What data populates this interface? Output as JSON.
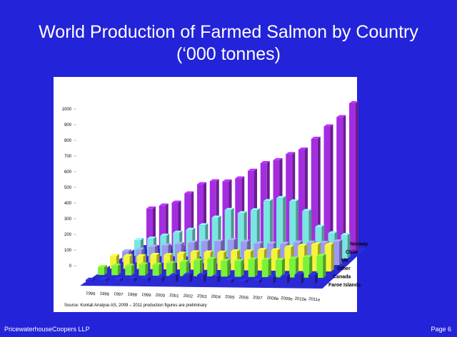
{
  "chart_data": {
    "type": "bar3d",
    "title": "World Production of Farmed Salmon by Country",
    "subtitle": "(‘000 tonnes)",
    "categories": [
      "1995",
      "1996",
      "1997",
      "1998",
      "1999",
      "2000",
      "2001",
      "2002",
      "2003",
      "2004",
      "2005",
      "2006",
      "2007",
      "2008e",
      "2009e",
      "2010e",
      "2011e"
    ],
    "series": [
      {
        "name": "Faroe Islands",
        "color": "#2b2bd0",
        "values": [
          10,
          15,
          15,
          20,
          25,
          30,
          45,
          50,
          50,
          40,
          20,
          15,
          20,
          40,
          50,
          60,
          60
        ]
      },
      {
        "name": "Canada",
        "color": "#7af23a",
        "values": [
          50,
          60,
          60,
          70,
          70,
          80,
          90,
          100,
          110,
          100,
          100,
          110,
          110,
          110,
          120,
          130,
          140
        ]
      },
      {
        "name": "Other",
        "color": "#f4f43a",
        "values": [
          80,
          80,
          80,
          90,
          90,
          100,
          110,
          110,
          110,
          120,
          120,
          130,
          130,
          150,
          160,
          170,
          170
        ]
      },
      {
        "name": "UK",
        "color": "#9a9af0",
        "values": [
          70,
          80,
          100,
          110,
          120,
          130,
          140,
          140,
          150,
          140,
          130,
          130,
          130,
          140,
          140,
          140,
          150
        ]
      },
      {
        "name": "Chile",
        "color": "#7ae6e0",
        "values": [
          100,
          110,
          130,
          150,
          170,
          200,
          250,
          300,
          280,
          300,
          360,
          380,
          360,
          300,
          200,
          160,
          150
        ]
      },
      {
        "name": "Norway",
        "color": "#a42de0",
        "values": [
          260,
          280,
          300,
          360,
          420,
          440,
          440,
          460,
          510,
          560,
          580,
          620,
          650,
          720,
          800,
          860,
          950
        ]
      }
    ],
    "ylim": [
      0,
      1000
    ],
    "yticks": [
      0,
      100,
      200,
      300,
      400,
      500,
      600,
      700,
      800,
      900,
      1000
    ],
    "source": "Source: Kontali Analyse AS, 2009 – 2011 production figures are preliminary",
    "footer_left": "PricewaterhouseCoopers LLP",
    "footer_right": "Page 6"
  }
}
